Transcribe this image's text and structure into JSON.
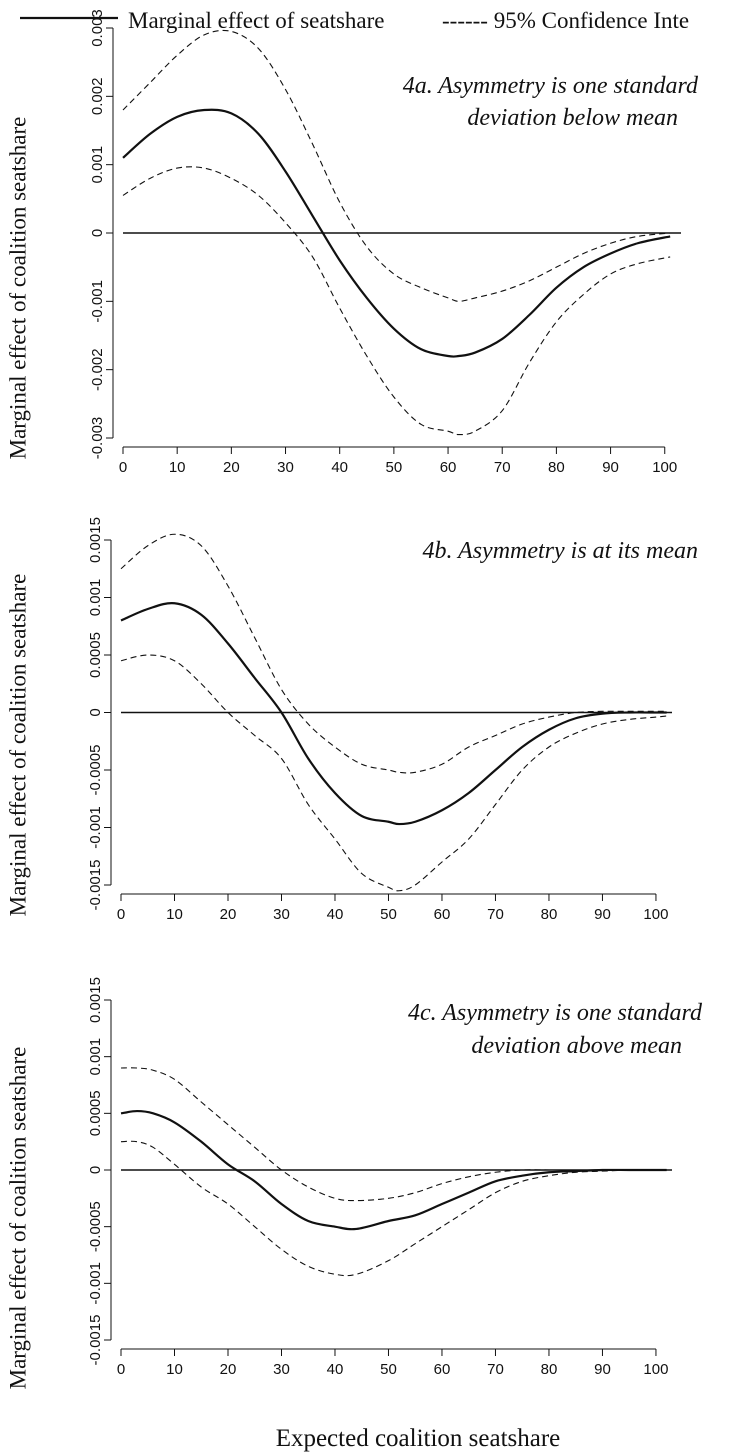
{
  "legend": {
    "solid_label": "Marginal effect of seatshare",
    "dashed_label": "------ 95% Confidence Inte"
  },
  "xlabel": "Expected coalition seatshare",
  "chart_data": [
    {
      "type": "line",
      "title_line1": "4a. Asymmetry is one standard",
      "title_line2": "deviation below mean",
      "ylabel": "Marginal effect of coalition seatshare",
      "xlim": [
        0,
        103
      ],
      "ylim": [
        -0.003,
        0.003
      ],
      "x_ticks": [
        0,
        10,
        20,
        30,
        40,
        50,
        60,
        70,
        80,
        90,
        100
      ],
      "x_tick_labels": [
        "0",
        "10",
        "20",
        "30",
        "40",
        "50",
        "60",
        "70",
        "80",
        "90",
        "100"
      ],
      "y_ticks": [
        -0.003,
        -0.002,
        -0.001,
        0,
        0.001,
        0.002,
        0.003
      ],
      "y_tick_labels": [
        "-0.003",
        "-0.002",
        "-0.001",
        "0",
        "0.001",
        "0.002",
        "0.003"
      ],
      "reference_line": 0,
      "x": [
        0,
        5,
        10,
        15,
        20,
        25,
        30,
        35,
        40,
        45,
        50,
        55,
        60,
        62,
        65,
        70,
        75,
        80,
        85,
        90,
        95,
        101
      ],
      "series": [
        {
          "name": "Marginal effect of seatshare",
          "style": "solid",
          "values": [
            0.0011,
            0.00145,
            0.0017,
            0.0018,
            0.00175,
            0.00145,
            0.0009,
            0.00025,
            -0.0004,
            -0.00095,
            -0.0014,
            -0.0017,
            -0.0018,
            -0.0018,
            -0.00175,
            -0.00155,
            -0.0012,
            -0.0008,
            -0.0005,
            -0.0003,
            -0.00015,
            -5e-05
          ]
        },
        {
          "name": "95% Confidence Inte",
          "style": "dashed",
          "values": [
            0.0018,
            0.0022,
            0.0026,
            0.0029,
            0.00295,
            0.0027,
            0.0021,
            0.0013,
            0.00045,
            -0.0002,
            -0.0006,
            -0.0008,
            -0.00095,
            -0.001,
            -0.00095,
            -0.00085,
            -0.0007,
            -0.0005,
            -0.0003,
            -0.00015,
            -5e-05,
            0
          ]
        },
        {
          "name": "95% Confidence Inte",
          "style": "dashed",
          "values": [
            0.00055,
            0.0008,
            0.00095,
            0.00095,
            0.0008,
            0.00055,
            0.00015,
            -0.00035,
            -0.0011,
            -0.0018,
            -0.0024,
            -0.0028,
            -0.0029,
            -0.00295,
            -0.0029,
            -0.0026,
            -0.0019,
            -0.0013,
            -0.0009,
            -0.0006,
            -0.00045,
            -0.00035
          ]
        }
      ]
    },
    {
      "type": "line",
      "title_line1": "4b. Asymmetry is at its mean",
      "title_line2": "",
      "ylabel": "Marginal effect of coalition seatshare",
      "xlim": [
        0,
        103
      ],
      "ylim": [
        -0.0015,
        0.0015
      ],
      "x_ticks": [
        0,
        10,
        20,
        30,
        40,
        50,
        60,
        70,
        80,
        90,
        100
      ],
      "x_tick_labels": [
        "0",
        "10",
        "20",
        "30",
        "40",
        "50",
        "60",
        "70",
        "80",
        "90",
        "100"
      ],
      "y_ticks": [
        -0.0015,
        -0.001,
        -0.0005,
        0,
        0.0005,
        0.001,
        0.0015
      ],
      "y_tick_labels": [
        "-0.0015",
        "-0.001",
        "-0.0005",
        "0",
        "0.0005",
        "0.001",
        "0.0015"
      ],
      "reference_line": 0,
      "x": [
        0,
        5,
        10,
        15,
        20,
        25,
        30,
        35,
        40,
        45,
        50,
        52,
        55,
        60,
        65,
        70,
        75,
        80,
        85,
        90,
        95,
        100,
        102
      ],
      "series": [
        {
          "name": "Marginal effect of seatshare",
          "style": "solid",
          "values": [
            0.0008,
            0.0009,
            0.00095,
            0.00085,
            0.0006,
            0.0003,
            0.0,
            -0.0004,
            -0.0007,
            -0.0009,
            -0.00095,
            -0.00097,
            -0.00095,
            -0.00085,
            -0.0007,
            -0.0005,
            -0.0003,
            -0.00015,
            -5e-05,
            -1e-05,
            0.0,
            0.0,
            0.0
          ]
        },
        {
          "name": "95% Confidence Inte",
          "style": "dashed",
          "values": [
            0.00125,
            0.00145,
            0.00155,
            0.00145,
            0.0011,
            0.00065,
            0.0002,
            -0.0001,
            -0.0003,
            -0.00045,
            -0.0005,
            -0.00052,
            -0.00052,
            -0.00045,
            -0.0003,
            -0.0002,
            -0.0001,
            -4e-05,
            0.0,
            1e-05,
            1e-05,
            1e-05,
            1e-05
          ]
        },
        {
          "name": "95% Confidence Inte",
          "style": "dashed",
          "values": [
            0.00045,
            0.0005,
            0.00045,
            0.00025,
            0.0,
            -0.0002,
            -0.0004,
            -0.0008,
            -0.0011,
            -0.0014,
            -0.00152,
            -0.00155,
            -0.0015,
            -0.0013,
            -0.0011,
            -0.0008,
            -0.0005,
            -0.0003,
            -0.00018,
            -0.0001,
            -6e-05,
            -4e-05,
            -3e-05
          ]
        }
      ]
    },
    {
      "type": "line",
      "title_line1": "4c. Asymmetry is one standard",
      "title_line2": "deviation above mean",
      "ylabel": "Marginal effect of coalition seatshare",
      "xlim": [
        0,
        103
      ],
      "ylim": [
        -0.0015,
        0.0015
      ],
      "x_ticks": [
        0,
        10,
        20,
        30,
        40,
        50,
        60,
        70,
        80,
        90,
        100
      ],
      "x_tick_labels": [
        "0",
        "10",
        "20",
        "30",
        "40",
        "50",
        "60",
        "70",
        "80",
        "90",
        "100"
      ],
      "y_ticks": [
        -0.0015,
        -0.001,
        -0.0005,
        0,
        0.0005,
        0.001,
        0.0015
      ],
      "y_tick_labels": [
        "-0.0015",
        "-0.001",
        "-0.0005",
        "0",
        "0.0005",
        "0.001",
        "0.0015"
      ],
      "reference_line": 0,
      "x": [
        0,
        3,
        6,
        10,
        15,
        20,
        25,
        30,
        35,
        40,
        44,
        50,
        55,
        60,
        65,
        70,
        75,
        80,
        85,
        90,
        95,
        100,
        102
      ],
      "series": [
        {
          "name": "Marginal effect of seatshare",
          "style": "solid",
          "values": [
            0.0005,
            0.00052,
            0.0005,
            0.00042,
            0.00025,
            5e-05,
            -0.0001,
            -0.0003,
            -0.00045,
            -0.0005,
            -0.00052,
            -0.00045,
            -0.0004,
            -0.0003,
            -0.0002,
            -0.0001,
            -5e-05,
            -2e-05,
            -1e-05,
            0.0,
            0.0,
            0.0,
            0.0
          ]
        },
        {
          "name": "95% Confidence Inte",
          "style": "dashed",
          "values": [
            0.0009,
            0.0009,
            0.00088,
            0.0008,
            0.0006,
            0.0004,
            0.0002,
            0.0,
            -0.00015,
            -0.00025,
            -0.00027,
            -0.00025,
            -0.0002,
            -0.00012,
            -6e-05,
            -2e-05,
            0.0,
            0.0,
            0.0,
            0.0,
            0.0,
            0.0,
            0.0
          ]
        },
        {
          "name": "95% Confidence Inte",
          "style": "dashed",
          "values": [
            0.00025,
            0.00025,
            0.0002,
            5e-05,
            -0.00015,
            -0.0003,
            -0.0005,
            -0.0007,
            -0.00085,
            -0.00092,
            -0.00092,
            -0.0008,
            -0.00065,
            -0.0005,
            -0.00035,
            -0.0002,
            -0.0001,
            -5e-05,
            -2e-05,
            -1e-05,
            0.0,
            0.0,
            0.0
          ]
        }
      ]
    }
  ]
}
